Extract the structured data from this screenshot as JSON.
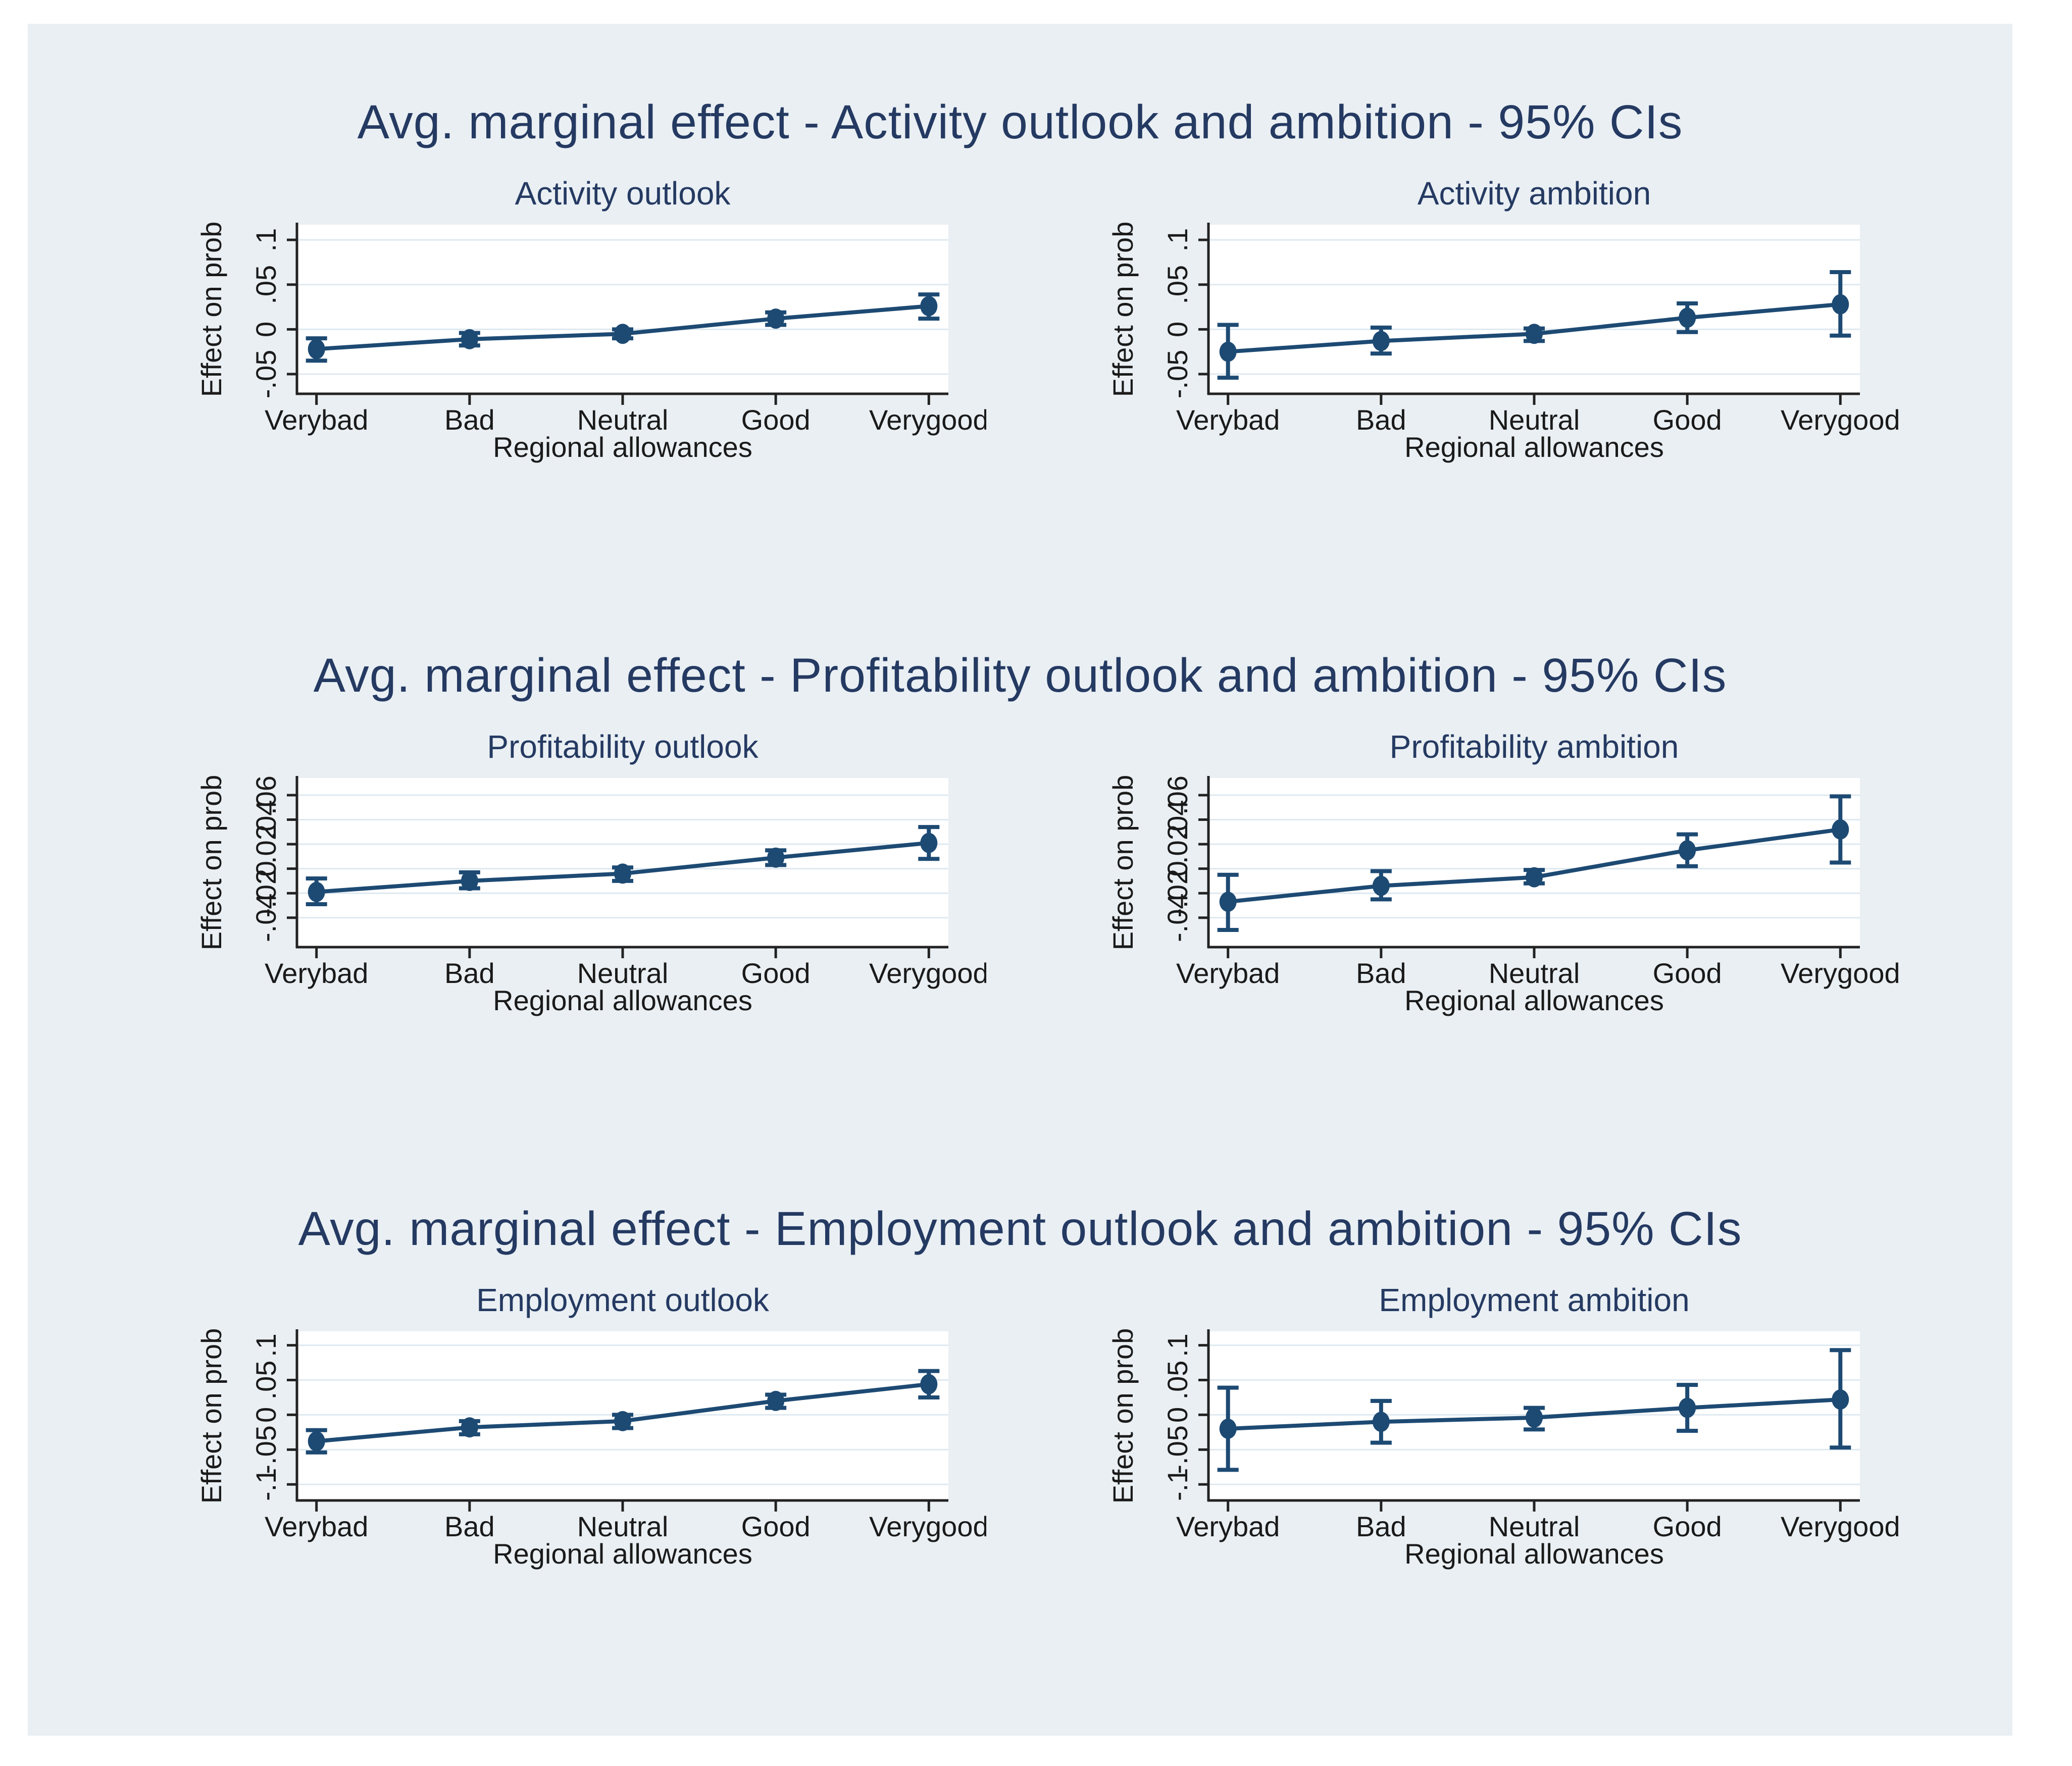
{
  "page": {
    "background": "#ffffff",
    "panel_background": "#e9eff3"
  },
  "colors": {
    "series": "#1d4a73",
    "title": "#253a62",
    "grid": "#dfe9f0",
    "axis": "#222222",
    "tick_label": "#1a1a1a",
    "plot_background": "#ffffff"
  },
  "sections": [
    {
      "title": "Avg. marginal effect - Activity outlook and ambition - 95% CIs"
    },
    {
      "title": "Avg. marginal effect - Profitability outlook and ambition - 95% CIs"
    },
    {
      "title": "Avg. marginal effect - Employment outlook and ambition - 95% CIs"
    }
  ],
  "chart_data": [
    {
      "type": "line",
      "title": "Activity outlook",
      "xlabel": "Regional allowances",
      "ylabel": "Effect on prob",
      "categories": [
        "Verybad",
        "Bad",
        "Neutral",
        "Good",
        "Verygood"
      ],
      "values": [
        -0.022,
        -0.011,
        -0.005,
        0.012,
        0.026
      ],
      "ci_low": [
        -0.035,
        -0.018,
        -0.01,
        0.005,
        0.012
      ],
      "ci_high": [
        -0.01,
        -0.004,
        0.0,
        0.019,
        0.039
      ],
      "yticks": [
        {
          "v": -0.05,
          "label": "-.05"
        },
        {
          "v": 0,
          "label": "0"
        },
        {
          "v": 0.05,
          "label": ".05"
        },
        {
          "v": 0.1,
          "label": ".1"
        }
      ],
      "ylim": [
        -0.072,
        0.117
      ],
      "grid": true,
      "legend": "none",
      "clip_last_label": true
    },
    {
      "type": "line",
      "title": "Activity ambition",
      "xlabel": "Regional allowances",
      "ylabel": "Effect on prob",
      "categories": [
        "Verybad",
        "Bad",
        "Neutral",
        "Good",
        "Verygood"
      ],
      "values": [
        -0.025,
        -0.013,
        -0.005,
        0.013,
        0.028
      ],
      "ci_low": [
        -0.054,
        -0.027,
        -0.013,
        -0.003,
        -0.007
      ],
      "ci_high": [
        0.005,
        0.002,
        0.001,
        0.029,
        0.064
      ],
      "yticks": [
        {
          "v": -0.05,
          "label": "-.05"
        },
        {
          "v": 0,
          "label": "0"
        },
        {
          "v": 0.05,
          "label": ".05"
        },
        {
          "v": 0.1,
          "label": ".1"
        }
      ],
      "ylim": [
        -0.072,
        0.117
      ],
      "grid": true,
      "legend": "none",
      "clip_last_label": false
    },
    {
      "type": "line",
      "title": "Profitability outlook",
      "xlabel": "Regional allowances",
      "ylabel": "Effect on prob",
      "categories": [
        "Verybad",
        "Bad",
        "Neutral",
        "Good",
        "Verygood"
      ],
      "values": [
        -0.019,
        -0.01,
        -0.004,
        0.009,
        0.021
      ],
      "ci_low": [
        -0.029,
        -0.016,
        -0.01,
        0.003,
        0.008
      ],
      "ci_high": [
        -0.008,
        -0.003,
        0.001,
        0.015,
        0.034
      ],
      "yticks": [
        {
          "v": -0.04,
          "label": "-.04"
        },
        {
          "v": -0.02,
          "label": "-.02"
        },
        {
          "v": 0,
          "label": "0"
        },
        {
          "v": 0.02,
          "label": ".02"
        },
        {
          "v": 0.04,
          "label": ".04"
        },
        {
          "v": 0.06,
          "label": ".06"
        }
      ],
      "ylim": [
        -0.064,
        0.074
      ],
      "grid": true,
      "legend": "none",
      "clip_last_label": true
    },
    {
      "type": "line",
      "title": "Profitability ambition",
      "xlabel": "Regional allowances",
      "ylabel": "Effect on prob",
      "categories": [
        "Verybad",
        "Bad",
        "Neutral",
        "Good",
        "Verygood"
      ],
      "values": [
        -0.027,
        -0.014,
        -0.007,
        0.015,
        0.032
      ],
      "ci_low": [
        -0.05,
        -0.025,
        -0.012,
        0.002,
        0.005
      ],
      "ci_high": [
        -0.005,
        -0.002,
        -0.001,
        0.028,
        0.059
      ],
      "yticks": [
        {
          "v": -0.04,
          "label": "-.04"
        },
        {
          "v": -0.02,
          "label": "-.02"
        },
        {
          "v": 0,
          "label": "0"
        },
        {
          "v": 0.02,
          "label": ".02"
        },
        {
          "v": 0.04,
          "label": ".04"
        },
        {
          "v": 0.06,
          "label": ".06"
        }
      ],
      "ylim": [
        -0.064,
        0.074
      ],
      "grid": true,
      "legend": "none",
      "clip_last_label": false
    },
    {
      "type": "line",
      "title": "Employment outlook",
      "xlabel": "Regional allowances",
      "ylabel": "Effect on prob",
      "categories": [
        "Verybad",
        "Bad",
        "Neutral",
        "Good",
        "Verygood"
      ],
      "values": [
        -0.038,
        -0.018,
        -0.009,
        0.02,
        0.044
      ],
      "ci_low": [
        -0.054,
        -0.028,
        -0.019,
        0.01,
        0.025
      ],
      "ci_high": [
        -0.022,
        -0.009,
        0.0,
        0.029,
        0.063
      ],
      "yticks": [
        {
          "v": -0.1,
          "label": "-.1"
        },
        {
          "v": -0.05,
          "label": "-.05"
        },
        {
          "v": 0,
          "label": "0"
        },
        {
          "v": 0.05,
          "label": ".05"
        },
        {
          "v": 0.1,
          "label": ".1"
        }
      ],
      "ylim": [
        -0.123,
        0.12
      ],
      "grid": true,
      "legend": "none",
      "clip_last_label": true
    },
    {
      "type": "line",
      "title": "Employment ambition",
      "xlabel": "Regional allowances",
      "ylabel": "Effect on prob",
      "categories": [
        "Verybad",
        "Bad",
        "Neutral",
        "Good",
        "Verygood"
      ],
      "values": [
        -0.02,
        -0.01,
        -0.004,
        0.01,
        0.022
      ],
      "ci_low": [
        -0.079,
        -0.04,
        -0.021,
        -0.023,
        -0.047
      ],
      "ci_high": [
        0.039,
        0.02,
        0.01,
        0.043,
        0.093
      ],
      "yticks": [
        {
          "v": -0.1,
          "label": "-.1"
        },
        {
          "v": -0.05,
          "label": "-.05"
        },
        {
          "v": 0,
          "label": "0"
        },
        {
          "v": 0.05,
          "label": ".05"
        },
        {
          "v": 0.1,
          "label": ".1"
        }
      ],
      "ylim": [
        -0.123,
        0.12
      ],
      "grid": true,
      "legend": "none",
      "clip_last_label": false
    }
  ]
}
